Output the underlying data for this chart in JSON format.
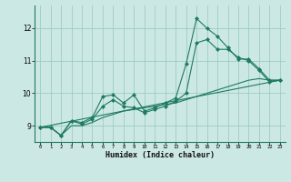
{
  "xlabel": "Humidex (Indice chaleur)",
  "ylabel": "",
  "bg_color": "#cce8e4",
  "grid_color": "#9eccc6",
  "line_color": "#1e7a62",
  "xlim": [
    -0.5,
    23.5
  ],
  "ylim": [
    8.5,
    12.7
  ],
  "yticks": [
    9,
    10,
    11,
    12
  ],
  "xticks": [
    0,
    1,
    2,
    3,
    4,
    5,
    6,
    7,
    8,
    9,
    10,
    11,
    12,
    13,
    14,
    15,
    16,
    17,
    18,
    19,
    20,
    21,
    22,
    23
  ],
  "lines": [
    {
      "x": [
        0,
        1,
        2,
        3,
        4,
        5,
        6,
        7,
        8,
        9,
        10,
        11,
        12,
        13,
        14,
        15,
        16,
        17,
        18,
        19,
        20,
        21,
        22,
        23
      ],
      "y": [
        8.95,
        8.95,
        8.7,
        9.15,
        9.1,
        9.25,
        9.9,
        9.95,
        9.7,
        9.95,
        9.45,
        9.55,
        9.7,
        9.85,
        10.9,
        12.3,
        12.0,
        11.75,
        11.4,
        11.05,
        11.05,
        10.75,
        10.4,
        10.4
      ],
      "marker": true
    },
    {
      "x": [
        0,
        1,
        2,
        3,
        4,
        5,
        6,
        7,
        8,
        9,
        10,
        11,
        12,
        13,
        14,
        15,
        16,
        17,
        18,
        19,
        20,
        21,
        22,
        23
      ],
      "y": [
        8.95,
        8.95,
        8.7,
        9.15,
        9.05,
        9.2,
        9.6,
        9.8,
        9.6,
        9.55,
        9.4,
        9.5,
        9.6,
        9.75,
        10.0,
        11.55,
        11.65,
        11.35,
        11.35,
        11.1,
        11.0,
        10.7,
        10.35,
        10.4
      ],
      "marker": true
    },
    {
      "x": [
        0,
        1,
        2,
        3,
        4,
        5,
        6,
        7,
        8,
        9,
        10,
        11,
        12,
        13,
        14,
        15,
        16,
        17,
        18,
        19,
        20,
        21,
        22,
        23
      ],
      "y": [
        8.95,
        8.95,
        8.7,
        9.0,
        9.0,
        9.1,
        9.25,
        9.35,
        9.45,
        9.5,
        9.55,
        9.6,
        9.65,
        9.7,
        9.8,
        9.9,
        10.0,
        10.1,
        10.2,
        10.3,
        10.4,
        10.45,
        10.4,
        10.4
      ],
      "marker": false
    },
    {
      "x": [
        0,
        23
      ],
      "y": [
        8.95,
        10.4
      ],
      "marker": false
    }
  ]
}
